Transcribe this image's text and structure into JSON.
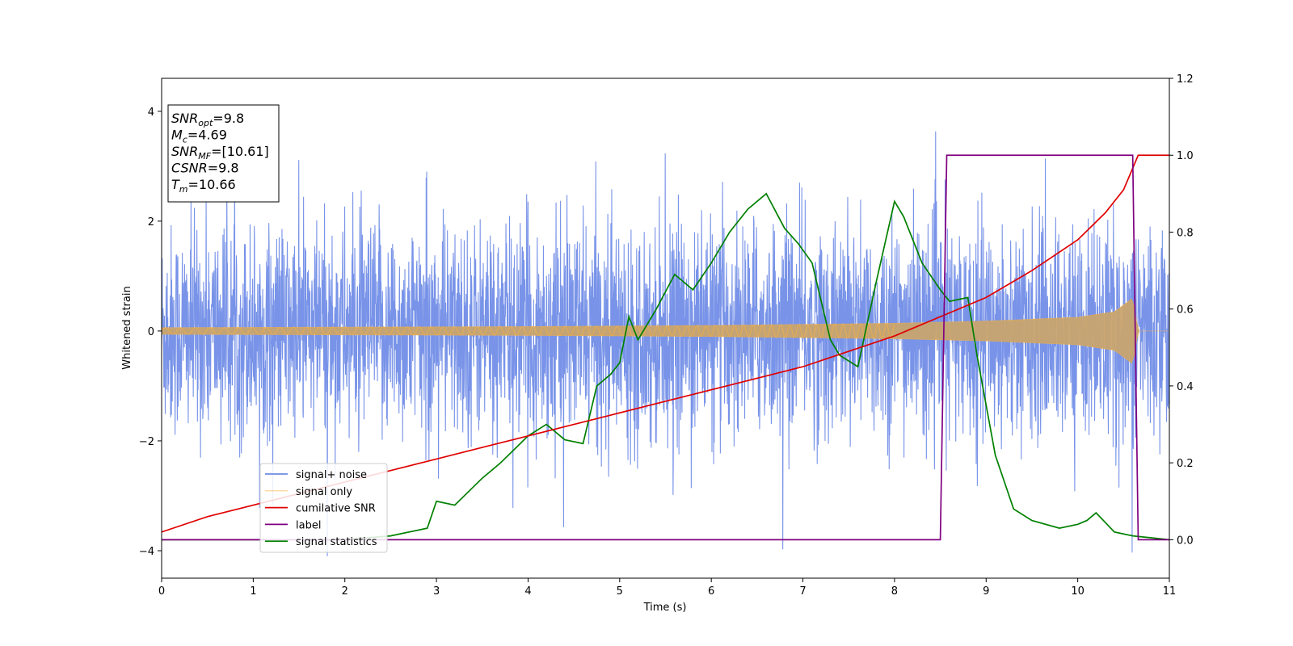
{
  "chart_data": {
    "type": "line",
    "xlabel": "Time (s)",
    "ylabel": "Whitened strain",
    "xlim": [
      0,
      11
    ],
    "ylim_left": [
      -4.5,
      4.6
    ],
    "ylim_right": [
      -0.1,
      1.2
    ],
    "x_ticks": [
      0,
      1,
      2,
      3,
      4,
      5,
      6,
      7,
      8,
      9,
      10,
      11
    ],
    "y_left_ticks": [
      -4,
      -2,
      0,
      2,
      4
    ],
    "y_right_ticks": [
      "0.0",
      "0.2",
      "0.4",
      "0.6",
      "0.8",
      "1.0",
      "1.2"
    ],
    "grid": false,
    "legend_position": "lower-left",
    "info_box": [
      {
        "sym": "SNR",
        "sub": "opt",
        "value": "=9.8"
      },
      {
        "sym": "M",
        "sub": "c",
        "value": "=4.69"
      },
      {
        "sym": "SNR",
        "sub": "MF",
        "value": "=[10.61]"
      },
      {
        "sym": "CSNR",
        "sub": "",
        "value": "=9.8"
      },
      {
        "sym": "T",
        "sub": "m",
        "value": "=10.66"
      }
    ],
    "series": [
      {
        "name": "signal+ noise",
        "axis": "left",
        "color": "#6d8ae6",
        "note_envelope": {
          "x": [
            0,
            1,
            2,
            3,
            4,
            5,
            6,
            7,
            8,
            9,
            10,
            11
          ],
          "typical_max": [
            1.9,
            1.9,
            1.9,
            1.9,
            1.9,
            1.9,
            1.9,
            1.9,
            1.9,
            1.9,
            1.9,
            1.9
          ],
          "peak_max": 4.17
        }
      },
      {
        "name": "signal only",
        "axis": "left",
        "color": "#f5b041",
        "amplitude": {
          "x": [
            0,
            2,
            4,
            6,
            8,
            9,
            10,
            10.4,
            10.6,
            10.66,
            11
          ],
          "y": [
            0.06,
            0.07,
            0.08,
            0.1,
            0.14,
            0.18,
            0.25,
            0.35,
            0.6,
            0.0,
            0.0
          ]
        }
      },
      {
        "name": "cumilative SNR",
        "axis": "right",
        "color": "#e00000",
        "x": [
          0,
          0.5,
          1,
          1.5,
          2,
          2.5,
          3,
          3.5,
          4,
          4.5,
          5,
          5.5,
          6,
          6.5,
          7,
          7.5,
          8,
          8.5,
          9,
          9.5,
          10,
          10.3,
          10.5,
          10.66,
          11
        ],
        "y": [
          0.02,
          0.06,
          0.09,
          0.12,
          0.15,
          0.18,
          0.21,
          0.24,
          0.27,
          0.3,
          0.33,
          0.36,
          0.39,
          0.42,
          0.45,
          0.49,
          0.53,
          0.58,
          0.63,
          0.7,
          0.78,
          0.85,
          0.91,
          1.0,
          1.0
        ]
      },
      {
        "name": "label",
        "axis": "right",
        "color": "#800080",
        "x": [
          0,
          8.5,
          8.57,
          10.6,
          10.66,
          11
        ],
        "y": [
          0.0,
          0.0,
          1.0,
          1.0,
          0.0,
          0.0
        ]
      },
      {
        "name": "signal statistics",
        "axis": "right",
        "color": "#008000",
        "x": [
          0,
          1,
          2,
          2.5,
          2.9,
          3.0,
          3.2,
          3.5,
          3.7,
          4.0,
          4.2,
          4.4,
          4.6,
          4.75,
          4.9,
          5.0,
          5.1,
          5.2,
          5.4,
          5.6,
          5.8,
          6.0,
          6.2,
          6.4,
          6.6,
          6.8,
          6.95,
          7.1,
          7.3,
          7.4,
          7.6,
          7.8,
          8.0,
          8.1,
          8.3,
          8.5,
          8.6,
          8.8,
          8.9,
          9.1,
          9.3,
          9.5,
          9.8,
          10.0,
          10.1,
          10.2,
          10.4,
          10.6,
          11.0
        ],
        "y": [
          0.0,
          0.0,
          0.0,
          0.01,
          0.03,
          0.1,
          0.09,
          0.16,
          0.2,
          0.27,
          0.3,
          0.26,
          0.25,
          0.4,
          0.43,
          0.46,
          0.58,
          0.52,
          0.6,
          0.69,
          0.65,
          0.72,
          0.8,
          0.86,
          0.9,
          0.81,
          0.77,
          0.72,
          0.52,
          0.48,
          0.45,
          0.67,
          0.88,
          0.84,
          0.72,
          0.65,
          0.62,
          0.63,
          0.48,
          0.22,
          0.08,
          0.05,
          0.03,
          0.04,
          0.05,
          0.07,
          0.02,
          0.01,
          0.0
        ]
      }
    ]
  }
}
